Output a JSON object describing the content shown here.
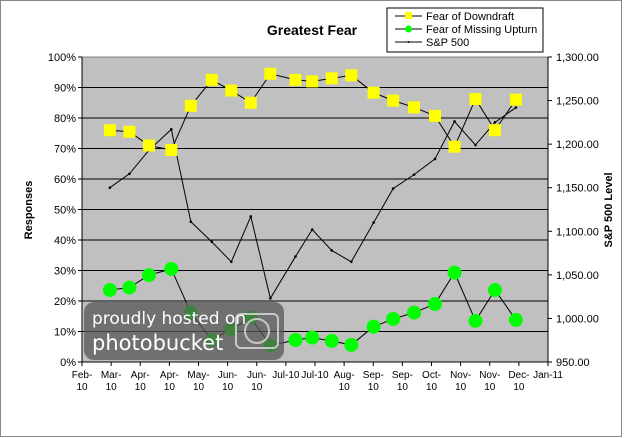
{
  "chart_data": {
    "type": "line",
    "title": "Greatest Fear",
    "ylabel": "Responses",
    "y2label": "S&P 500 Level",
    "xlabel": "",
    "xlim": [
      "2010-02-01",
      "2011-01-01"
    ],
    "ylim": [
      0,
      100
    ],
    "y2lim": [
      950,
      1300
    ],
    "grid": true,
    "legend": "top-right",
    "plot_background": "#c0c0c0",
    "x_tick_labels": [
      [
        "Feb-",
        "10"
      ],
      [
        "Mar-",
        "10"
      ],
      [
        "Apr-",
        "10"
      ],
      [
        "Apr-",
        "10"
      ],
      [
        "May-",
        "10"
      ],
      [
        "Jun-",
        "10"
      ],
      [
        "Jun-",
        "10"
      ],
      [
        "Jul-10",
        ""
      ],
      [
        "Jul-10",
        ""
      ],
      [
        "Aug-",
        "10"
      ],
      [
        "Sep-",
        "10"
      ],
      [
        "Sep-",
        "10"
      ],
      [
        "Oct-",
        "10"
      ],
      [
        "Nov-",
        "10"
      ],
      [
        "Nov-",
        "10"
      ],
      [
        "Dec-",
        "10"
      ],
      [
        "Jan-11",
        ""
      ]
    ],
    "y_tick_labels": [
      "0%",
      "10%",
      "20%",
      "30%",
      "40%",
      "50%",
      "60%",
      "70%",
      "80%",
      "90%",
      "100%"
    ],
    "y2_tick_labels": [
      "950.00",
      "1,000.00",
      "1,050.00",
      "1,100.00",
      "1,150.00",
      "1,200.00",
      "1,250.00",
      "1,300.00"
    ],
    "x": [
      "2010-02-21",
      "2010-03-07",
      "2010-03-21",
      "2010-04-06",
      "2010-04-20",
      "2010-05-05",
      "2010-05-19",
      "2010-06-02",
      "2010-06-16",
      "2010-07-04",
      "2010-07-16",
      "2010-07-30",
      "2010-08-13",
      "2010-08-29",
      "2010-09-12",
      "2010-09-27",
      "2010-10-12",
      "2010-10-26",
      "2010-11-10",
      "2010-11-24",
      "2010-12-09"
    ],
    "series": [
      {
        "name": "Fear of Downdraft",
        "axis": "left",
        "color": "#ffff00",
        "marker": "square",
        "values": [
          76,
          75.5,
          71,
          69.5,
          84,
          92.5,
          89,
          85,
          94.5,
          92.5,
          92,
          93,
          94,
          88.3,
          85.7,
          83.5,
          80.7,
          70.6,
          86.2,
          76,
          86
        ]
      },
      {
        "name": "Fear of Missing Upturn",
        "axis": "left",
        "color": "#00ff00",
        "marker": "circle",
        "values": [
          23.6,
          24.4,
          28.5,
          30.5,
          16.2,
          7.2,
          10.8,
          14.5,
          5.4,
          7.2,
          8,
          6.9,
          5.6,
          11.6,
          14.1,
          16.2,
          19,
          29.3,
          13.5,
          23.6,
          13.8
        ]
      },
      {
        "name": "S&P 500",
        "axis": "right",
        "color": "#000000",
        "marker": "dot",
        "values": [
          1150,
          1166,
          1193,
          1217,
          1111,
          1088,
          1065,
          1117,
          1023,
          1071,
          1102,
          1078,
          1065,
          1110,
          1149,
          1165,
          1183,
          1226,
          1199,
          1225,
          1242
        ]
      }
    ]
  },
  "watermark": {
    "line1": "proudly hosted on",
    "line2": "photobucket"
  }
}
